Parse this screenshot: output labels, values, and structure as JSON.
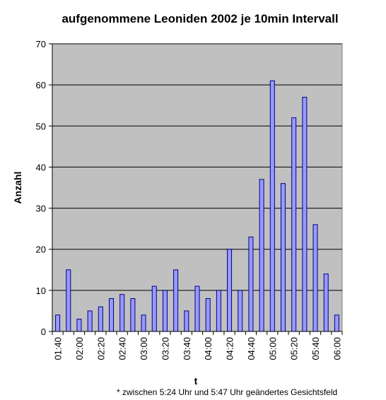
{
  "chart_data": {
    "type": "bar",
    "title": "aufgenommene Leoniden 2002 je 10min Intervall",
    "xlabel": "t",
    "ylabel": "Anzahl",
    "ylim": [
      0,
      70
    ],
    "yticks": [
      0,
      10,
      20,
      30,
      40,
      50,
      60,
      70
    ],
    "grid": true,
    "legend": "none",
    "footnote": "* zwischen 5:24 Uhr und 5:47 Uhr geändertes Gesichtsfeld",
    "categories": [
      "01:40",
      "01:50",
      "02:00",
      "02:10",
      "02:20",
      "02:30",
      "02:40",
      "02:50",
      "03:00",
      "03:10",
      "03:20",
      "03:30",
      "03:40",
      "03:50",
      "04:00",
      "04:10",
      "04:20",
      "04:30",
      "04:40",
      "04:50",
      "05:00",
      "05:10",
      "05:20",
      "05:30",
      "05:40",
      "05:50",
      "06:00"
    ],
    "tick_labels": [
      "01:40",
      "02:00",
      "02:20",
      "02:40",
      "03:00",
      "03:20",
      "03:40",
      "04:00",
      "04:20",
      "04:40",
      "05:00",
      "05:20",
      "05:40",
      "06:00"
    ],
    "values": [
      4,
      15,
      3,
      5,
      6,
      8,
      9,
      8,
      4,
      11,
      10,
      15,
      5,
      11,
      8,
      10,
      20,
      10,
      23,
      37,
      61,
      36,
      52,
      57,
      26,
      14,
      4
    ],
    "colors": {
      "bar_fill": "#9999ff",
      "bar_stroke": "#000080",
      "plot_bg": "#c0c0c0",
      "grid": "#000000"
    }
  }
}
